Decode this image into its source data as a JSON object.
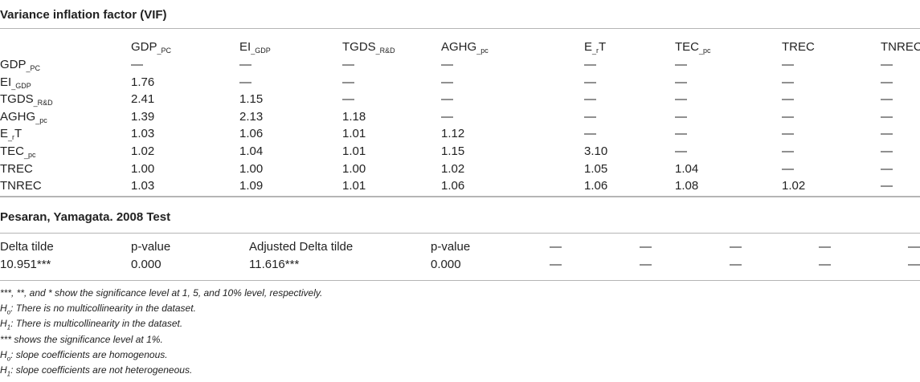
{
  "vif_section": {
    "title": "Variance inflation factor (VIF)",
    "columns": [
      {
        "base": "GDP",
        "sub": "_PC"
      },
      {
        "base": "EI",
        "sub": "_GDP"
      },
      {
        "base": "TGDS",
        "sub": "_R&D"
      },
      {
        "base": "AGHG",
        "sub": "_pc"
      },
      {
        "base": "E",
        "sub": "_r",
        "tail": "T"
      },
      {
        "base": "TEC",
        "sub": "_pc"
      },
      {
        "base": "TREC",
        "sub": ""
      },
      {
        "base": "TNREC",
        "sub": ""
      }
    ],
    "rows": [
      {
        "label": {
          "base": "GDP",
          "sub": "_PC"
        },
        "values": [
          "—",
          "—",
          "—",
          "—",
          "—",
          "—",
          "—",
          "—"
        ]
      },
      {
        "label": {
          "base": "EI",
          "sub": "_GDP"
        },
        "values": [
          "1.76",
          "—",
          "—",
          "—",
          "—",
          "—",
          "—",
          "—"
        ]
      },
      {
        "label": {
          "base": "TGDS",
          "sub": "_R&D"
        },
        "values": [
          "2.41",
          "1.15",
          "—",
          "—",
          "—",
          "—",
          "—",
          "—"
        ]
      },
      {
        "label": {
          "base": "AGHG",
          "sub": "_pc"
        },
        "values": [
          "1.39",
          "2.13",
          "1.18",
          "—",
          "—",
          "—",
          "—",
          "—"
        ]
      },
      {
        "label": {
          "base": "E",
          "sub": "_r",
          "tail": "T"
        },
        "values": [
          "1.03",
          "1.06",
          "1.01",
          "1.12",
          "—",
          "—",
          "—",
          "—"
        ]
      },
      {
        "label": {
          "base": "TEC",
          "sub": "_pc"
        },
        "values": [
          "1.02",
          "1.04",
          "1.01",
          "1.15",
          "3.10",
          "—",
          "—",
          "—"
        ]
      },
      {
        "label": {
          "base": "TREC",
          "sub": ""
        },
        "values": [
          "1.00",
          "1.00",
          "1.00",
          "1.02",
          "1.05",
          "1.04",
          "—",
          "—"
        ]
      },
      {
        "label": {
          "base": "TNREC",
          "sub": ""
        },
        "values": [
          "1.03",
          "1.09",
          "1.01",
          "1.06",
          "1.06",
          "1.08",
          "1.02",
          "—"
        ]
      }
    ]
  },
  "py_section": {
    "title": "Pesaran, Yamagata. 2008 Test",
    "header": [
      "Delta tilde",
      "p-value",
      "Adjusted Delta tilde",
      "p-value",
      "—",
      "—",
      "—",
      "—",
      "—"
    ],
    "values": [
      "10.951***",
      "0.000",
      "11.616***",
      "0.000",
      "—",
      "—",
      "—",
      "—",
      "—"
    ]
  },
  "notes": [
    {
      "pre": "",
      "sym": "",
      "text": "***, **, and * show the significance level at 1, 5, and 10% level, respectively."
    },
    {
      "pre": "H",
      "sym": "o",
      "text": ": There is no multicollinearity in the dataset."
    },
    {
      "pre": "H",
      "sym": "1",
      "text": ": There is multicollinearity in the dataset."
    },
    {
      "pre": "",
      "sym": "",
      "text": "*** shows the significance level at 1%."
    },
    {
      "pre": "H",
      "sym": "o",
      "text": ": slope coefficients are homogenous."
    },
    {
      "pre": "H",
      "sym": "1",
      "text": ": slope coefficients are not heterogeneous."
    }
  ]
}
